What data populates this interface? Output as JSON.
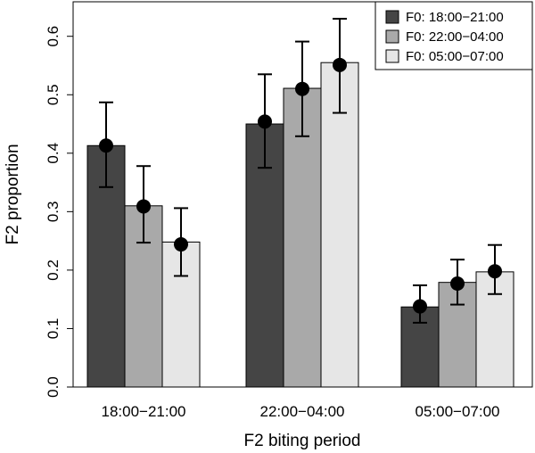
{
  "chart_data": {
    "type": "bar",
    "title": "",
    "xlabel": "F2 biting period",
    "ylabel": "F2 proportion",
    "ylim": [
      0,
      0.65
    ],
    "yticks": [
      "0.0",
      "0.1",
      "0.2",
      "0.3",
      "0.4",
      "0.5",
      "0.6"
    ],
    "categories": [
      "18:00−21:00",
      "22:00−04:00",
      "05:00−07:00"
    ],
    "legend_position": "top-right",
    "grid": false,
    "series": [
      {
        "name": "F0: 18:00−21:00",
        "color": "#454545",
        "values": [
          0.413,
          0.45,
          0.137
        ],
        "points": [
          0.413,
          0.454,
          0.138
        ],
        "err_low": [
          0.342,
          0.375,
          0.11
        ],
        "err_high": [
          0.487,
          0.535,
          0.174
        ]
      },
      {
        "name": "F0: 22:00−04:00",
        "color": "#a9a9a9",
        "values": [
          0.31,
          0.511,
          0.179
        ],
        "points": [
          0.309,
          0.51,
          0.177
        ],
        "err_low": [
          0.247,
          0.429,
          0.141
        ],
        "err_high": [
          0.378,
          0.591,
          0.218
        ]
      },
      {
        "name": "F0: 05:00−07:00",
        "color": "#e6e6e6",
        "values": [
          0.248,
          0.555,
          0.197
        ],
        "points": [
          0.244,
          0.551,
          0.198
        ],
        "err_low": [
          0.19,
          0.469,
          0.159
        ],
        "err_high": [
          0.306,
          0.63,
          0.243
        ]
      }
    ]
  }
}
